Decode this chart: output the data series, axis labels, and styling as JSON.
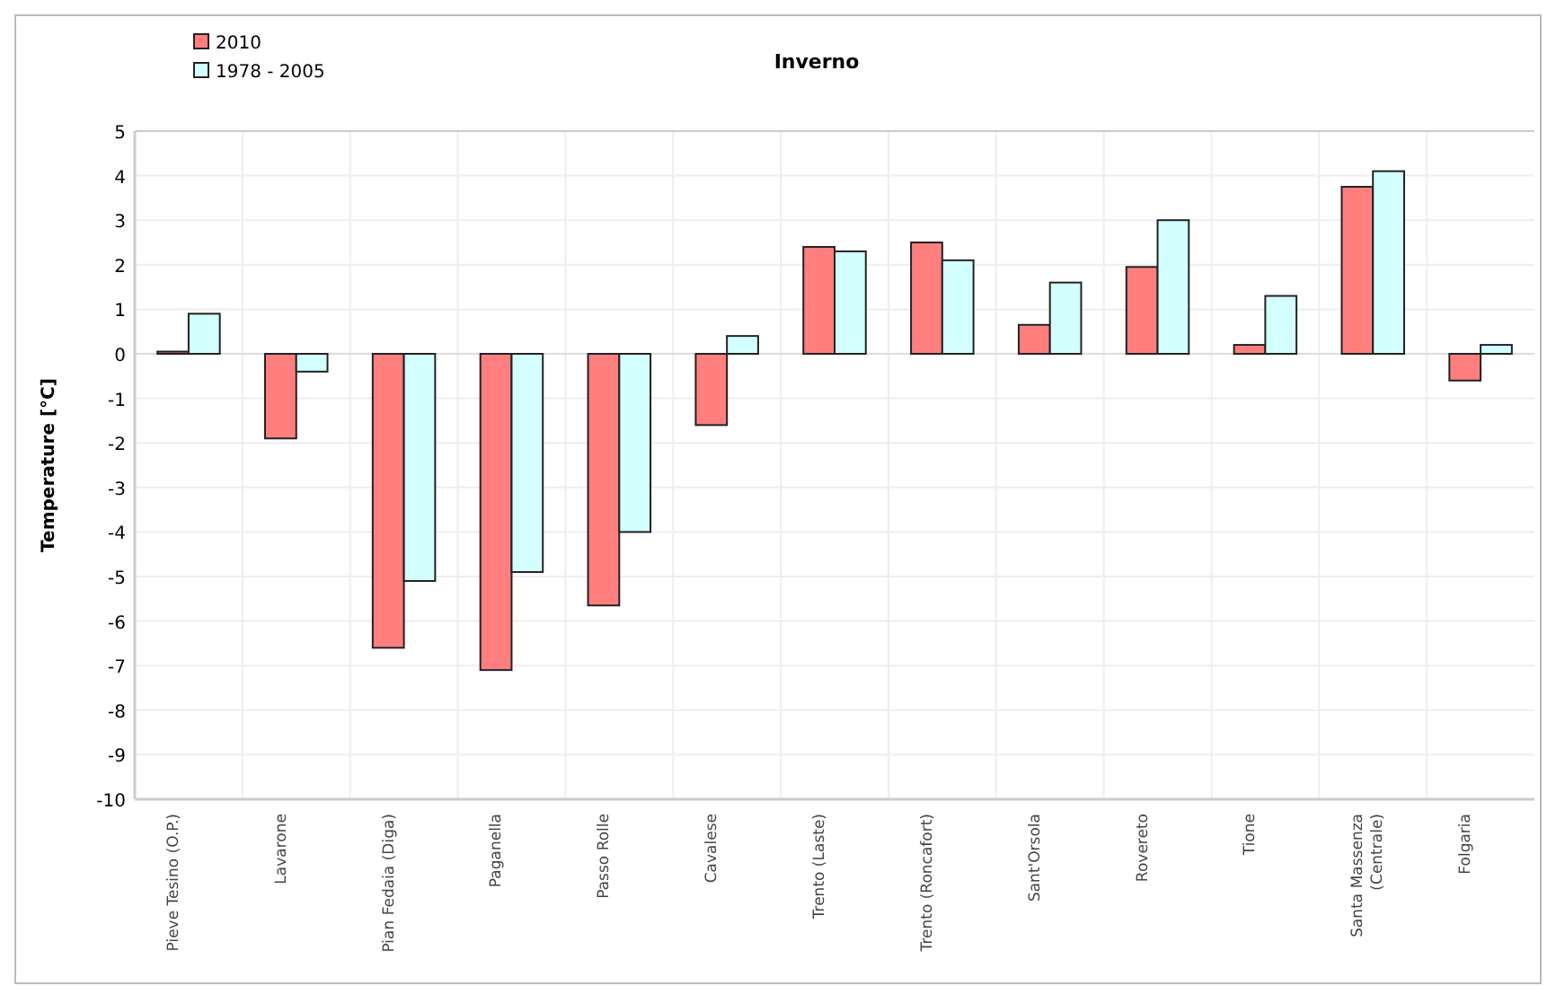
{
  "chart_data": {
    "type": "bar",
    "title": "Inverno",
    "ylabel": "Temperature [°C]",
    "categories": [
      "Pieve Tesino (O.P.)",
      "Lavarone",
      "Pian Fedaia (Diga)",
      "Paganella",
      "Passo Rolle",
      "Cavalese",
      "Trento (Laste)",
      "Trento (Roncafort)",
      "Sant'Orsola",
      "Rovereto",
      "Tione",
      "Santa Massenza (Centrale)",
      "Folgaria"
    ],
    "series": [
      {
        "name": "2010",
        "color": "#ff7f7f",
        "values": [
          0.05,
          -1.9,
          -6.6,
          -7.1,
          -5.65,
          -1.6,
          2.4,
          2.5,
          0.65,
          1.95,
          0.2,
          3.75,
          -0.6
        ]
      },
      {
        "name": "1978 - 2005",
        "color": "#d4ffff",
        "values": [
          0.9,
          -0.4,
          -5.1,
          -4.9,
          -4.0,
          0.4,
          2.3,
          2.1,
          1.6,
          3.0,
          1.3,
          4.1,
          0.2
        ]
      }
    ],
    "ylim": [
      -10,
      5
    ],
    "yticks": [
      -10,
      -9,
      -8,
      -7,
      -6,
      -5,
      -4,
      -3,
      -2,
      -1,
      0,
      1,
      2,
      3,
      4,
      5
    ],
    "grid": true,
    "legend": "top left"
  }
}
